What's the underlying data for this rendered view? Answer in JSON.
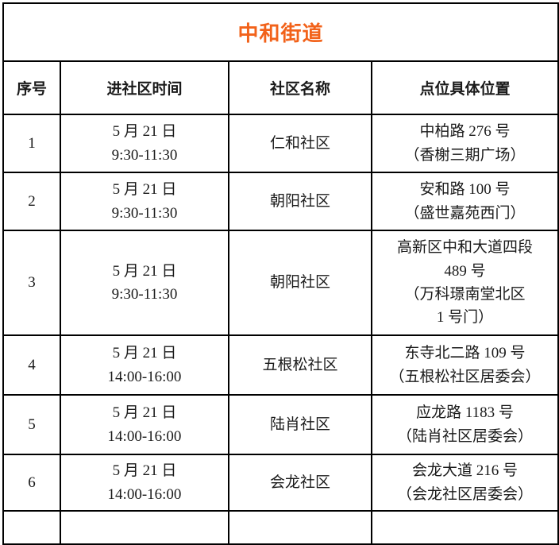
{
  "colors": {
    "title-accent": "#f2621a"
  },
  "title": "中和街道",
  "columns": {
    "serial": "序号",
    "time": "进社区时间",
    "community": "社区名称",
    "location": "点位具体位置"
  },
  "rows": [
    {
      "no": "1",
      "time": [
        "5 月 21 日",
        "9:30-11:30"
      ],
      "community": "仁和社区",
      "location": [
        "中柏路 276 号",
        "（香榭三期广场）"
      ]
    },
    {
      "no": "2",
      "time": [
        "5 月 21 日",
        "9:30-11:30"
      ],
      "community": "朝阳社区",
      "location": [
        "安和路 100 号",
        "（盛世嘉苑西门）"
      ]
    },
    {
      "no": "3",
      "time": [
        "5 月 21 日",
        "9:30-11:30"
      ],
      "community": "朝阳社区",
      "location": [
        "高新区中和大道四段",
        "489 号",
        "（万科璟南堂北区",
        "1 号门）"
      ]
    },
    {
      "no": "4",
      "time": [
        "5 月 21 日",
        "14:00-16:00"
      ],
      "community": "五根松社区",
      "location": [
        "东寺北二路 109 号",
        "（五根松社区居委会）"
      ]
    },
    {
      "no": "5",
      "time": [
        "5 月 21 日",
        "14:00-16:00"
      ],
      "community": "陆肖社区",
      "location": [
        "应龙路 1183 号",
        "（陆肖社区居委会）"
      ]
    },
    {
      "no": "6",
      "time": [
        "5 月 21 日",
        "14:00-16:00"
      ],
      "community": "会龙社区",
      "location": [
        "会龙大道 216 号",
        "（会龙社区居委会）"
      ]
    }
  ]
}
